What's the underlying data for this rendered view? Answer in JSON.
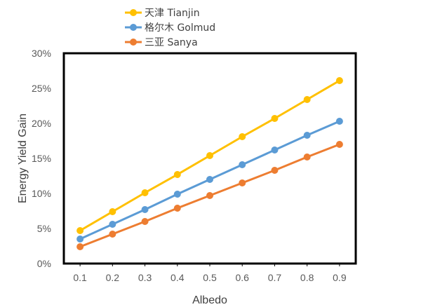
{
  "chart_data": {
    "type": "line",
    "x": [
      0.1,
      0.2,
      0.3,
      0.4,
      0.5,
      0.6,
      0.7,
      0.8,
      0.9
    ],
    "x_tick_labels": [
      "0.1",
      "0.2",
      "0.3",
      "0.4",
      "0.5",
      "0.6",
      "0.7",
      "0.8",
      "0.9"
    ],
    "y_tick_labels": [
      "0%",
      "5%",
      "10%",
      "15%",
      "20%",
      "25%",
      "30%"
    ],
    "y_ticks": [
      0,
      5,
      10,
      15,
      20,
      25,
      30
    ],
    "xlabel": "Albedo",
    "ylabel": "Energy Yield Gain",
    "xlim": [
      0.05,
      0.95
    ],
    "ylim": [
      0,
      30
    ],
    "grid": false,
    "legend_position": "top-left",
    "series": [
      {
        "name": "天津 Tianjin",
        "color": "#FFC000",
        "values": [
          4.7,
          7.4,
          10.1,
          12.7,
          15.4,
          18.1,
          20.7,
          23.4,
          26.1
        ]
      },
      {
        "name": "格尔木 Golmud",
        "color": "#5B9BD5",
        "values": [
          3.5,
          5.6,
          7.7,
          9.9,
          12.0,
          14.1,
          16.2,
          18.3,
          20.3
        ]
      },
      {
        "name": "三亚 Sanya",
        "color": "#ED7D31",
        "values": [
          2.4,
          4.2,
          6.0,
          7.9,
          9.7,
          11.5,
          13.3,
          15.2,
          17.0
        ]
      }
    ]
  }
}
